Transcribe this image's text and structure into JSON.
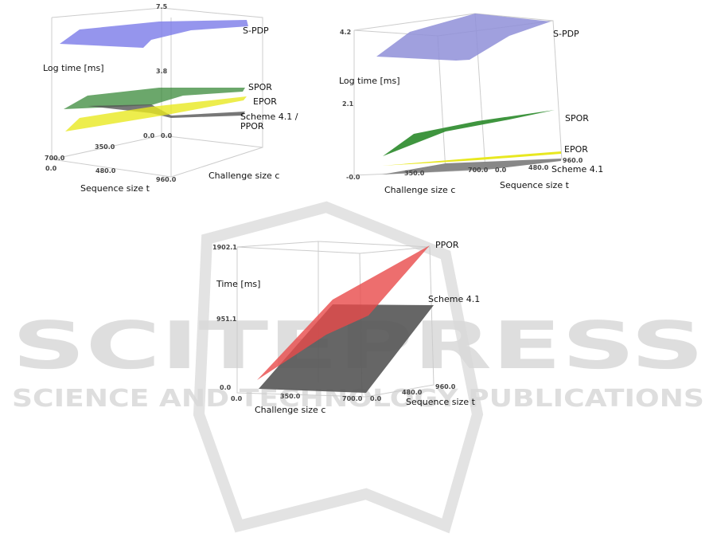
{
  "watermark": {
    "title": "SCITEPRESS",
    "subtitle": "SCIENCE AND TECHNOLOGY PUBLICATIONS"
  },
  "chart_data": [
    {
      "type": "surface3d",
      "zlabel": "Log time [ms]",
      "xlabel": "Sequence size t",
      "ylabel": "Challenge size c",
      "z_ticks": [
        "0.0",
        "3.8",
        "7.5"
      ],
      "x_ticks": [
        "0.0",
        "480.0",
        "960.0"
      ],
      "y_ticks": [
        "0.0",
        "350.0",
        "700.0"
      ],
      "zlim": [
        0.0,
        7.5
      ],
      "series": [
        {
          "name": "S-PDP",
          "color": "#7b7be8"
        },
        {
          "name": "SPOR",
          "color": "#3a8a3a"
        },
        {
          "name": "EPOR",
          "color": "#e8e820"
        },
        {
          "name": "Scheme 4.1 /",
          "name2": "PPOR",
          "color": "#666666"
        }
      ]
    },
    {
      "type": "surface3d",
      "zlabel": "Log time [ms]",
      "xlabel": "Challenge size c",
      "ylabel": "Sequence size t",
      "z_ticks": [
        "-0.0",
        "2.1",
        "4.2"
      ],
      "x_ticks": [
        "350.0",
        "700.0"
      ],
      "y_ticks": [
        "0.0",
        "480.0",
        "960.0"
      ],
      "zlim": [
        0.0,
        4.2
      ],
      "series": [
        {
          "name": "S-PDP",
          "color": "#8f8fd8"
        },
        {
          "name": "SPOR",
          "color": "#2a8a2a"
        },
        {
          "name": "EPOR",
          "color": "#e8e820"
        },
        {
          "name": "Scheme 4.1",
          "color": "#888888"
        }
      ]
    },
    {
      "type": "surface3d",
      "zlabel": "Time [ms]",
      "xlabel": "Challenge size c",
      "ylabel": "Sequence size t",
      "z_ticks": [
        "0.0",
        "951.1",
        "1902.1"
      ],
      "x_ticks": [
        "0.0",
        "350.0",
        "700.0"
      ],
      "y_ticks": [
        "0.0",
        "480.0",
        "960.0"
      ],
      "zlim": [
        0.0,
        1902.1
      ],
      "series": [
        {
          "name": "PPOR",
          "color": "#e84a4a"
        },
        {
          "name": "Scheme 4.1",
          "color": "#555555"
        }
      ]
    }
  ]
}
